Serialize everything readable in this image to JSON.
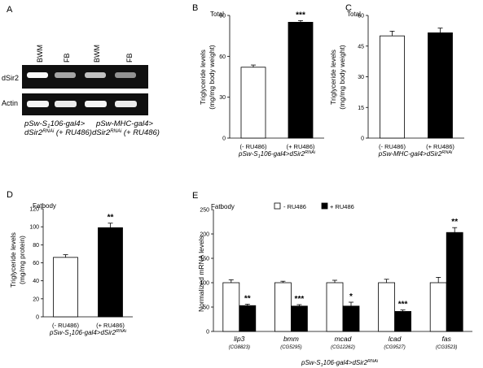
{
  "figure": {
    "gel": {
      "panel_letter": "A",
      "lane_labels": [
        "BWM",
        "FB",
        "BWM",
        "FB"
      ],
      "row_labels": [
        "dSir2",
        "Actin"
      ],
      "dsir2_band_intensity": [
        1.0,
        0.55,
        0.7,
        0.45
      ],
      "actin_band_intensity": [
        0.95,
        0.9,
        0.95,
        0.9
      ],
      "genotype_left": {
        "line1": "pSw-S",
        "line1_sub": "1",
        "line1_rest": "106-gal4>",
        "line2": "dSir2",
        "line2_sup": "RNAi",
        "line2_rest": " (+ RU486)"
      },
      "genotype_right": {
        "line1": "pSw-MHC-gal4>",
        "line2": "dSir2",
        "line2_sup": "RNAi",
        "line2_rest": " (+ RU486)"
      }
    },
    "genotype_footer_s1106": {
      "main": "pSw-S",
      "sub": "1",
      "mid": "106-gal4>dSir2",
      "sup": "RNAi"
    },
    "genotype_footer_mhc": {
      "main": "pSw-MHC-gal4>dSir2",
      "sup": "RNAi"
    },
    "ylabel_total": "Triglyceride levels",
    "ylabel_total_unit": "(mg/mg body weight)",
    "ylabel_fatbody": "Triglyceride levels",
    "ylabel_fatbody_unit": "(mg/mg protein)",
    "ylabel_mrna": "Normalized mRNA levels",
    "legend_minus": "- RU486",
    "legend_plus": "+ RU486",
    "bar_colors": {
      "minus": "#ffffff",
      "plus": "#000000"
    }
  },
  "chart_data": [
    {
      "panel": "B",
      "type": "bar",
      "inset_title": "Total",
      "categories": [
        "(- RU486)",
        "(+ RU486)"
      ],
      "values": [
        52,
        85
      ],
      "errors": [
        1.6,
        1.2
      ],
      "significance": [
        "",
        "***"
      ],
      "ylim": [
        0,
        90
      ],
      "yticks": [
        0,
        30,
        60,
        90
      ],
      "ylabel": "Triglyceride levels (mg/mg body weight)",
      "xlabel": "pSw-S1106-gal4>dSir2RNAi"
    },
    {
      "panel": "C",
      "type": "bar",
      "inset_title": "Total",
      "categories": [
        "(- RU486)",
        "(+ RU486)"
      ],
      "values": [
        50,
        51.5
      ],
      "errors": [
        2.3,
        2.3
      ],
      "significance": [
        "",
        ""
      ],
      "ylim": [
        0,
        60
      ],
      "yticks": [
        0,
        15,
        30,
        45,
        60
      ],
      "ylabel": "Triglyceride levels (mg/mg body weight)",
      "xlabel": "pSw-MHC-gal4>dSir2RNAi"
    },
    {
      "panel": "D",
      "type": "bar",
      "inset_title": "Fatbody",
      "categories": [
        "(- RU486)",
        "(+ RU486)"
      ],
      "values": [
        66,
        99
      ],
      "errors": [
        3,
        5
      ],
      "significance": [
        "",
        "**"
      ],
      "ylim": [
        0,
        120
      ],
      "yticks": [
        0,
        20,
        40,
        60,
        80,
        100,
        120
      ],
      "ylabel": "Triglyceride levels (mg/mg protein)",
      "xlabel": "pSw-S1106-gal4>dSir2RNAi"
    },
    {
      "panel": "E",
      "type": "bar",
      "inset_title": "Fatbody",
      "categories": [
        "lip3",
        "bmm",
        "mcad",
        "lcad",
        "fas"
      ],
      "category_ids": [
        "(CG8823)",
        "(CG5295)",
        "(CG12262)",
        "(CG9527)",
        "(CG3523)"
      ],
      "series": [
        {
          "name": "- RU486",
          "values": [
            100,
            100,
            100,
            100,
            100
          ],
          "errors": [
            6,
            3,
            5,
            7,
            11
          ]
        },
        {
          "name": "+ RU486",
          "values": [
            53,
            52,
            52,
            41,
            203
          ],
          "errors": [
            3,
            3,
            8,
            3,
            10
          ]
        }
      ],
      "significance": [
        "**",
        "***",
        "*",
        "***",
        "**"
      ],
      "ylim": [
        0,
        250
      ],
      "yticks": [
        0,
        50,
        100,
        150,
        200,
        250
      ],
      "ylabel": "Normalized mRNA levels",
      "xlabel": "pSw-S1106-gal4>dSir2RNAi"
    }
  ]
}
